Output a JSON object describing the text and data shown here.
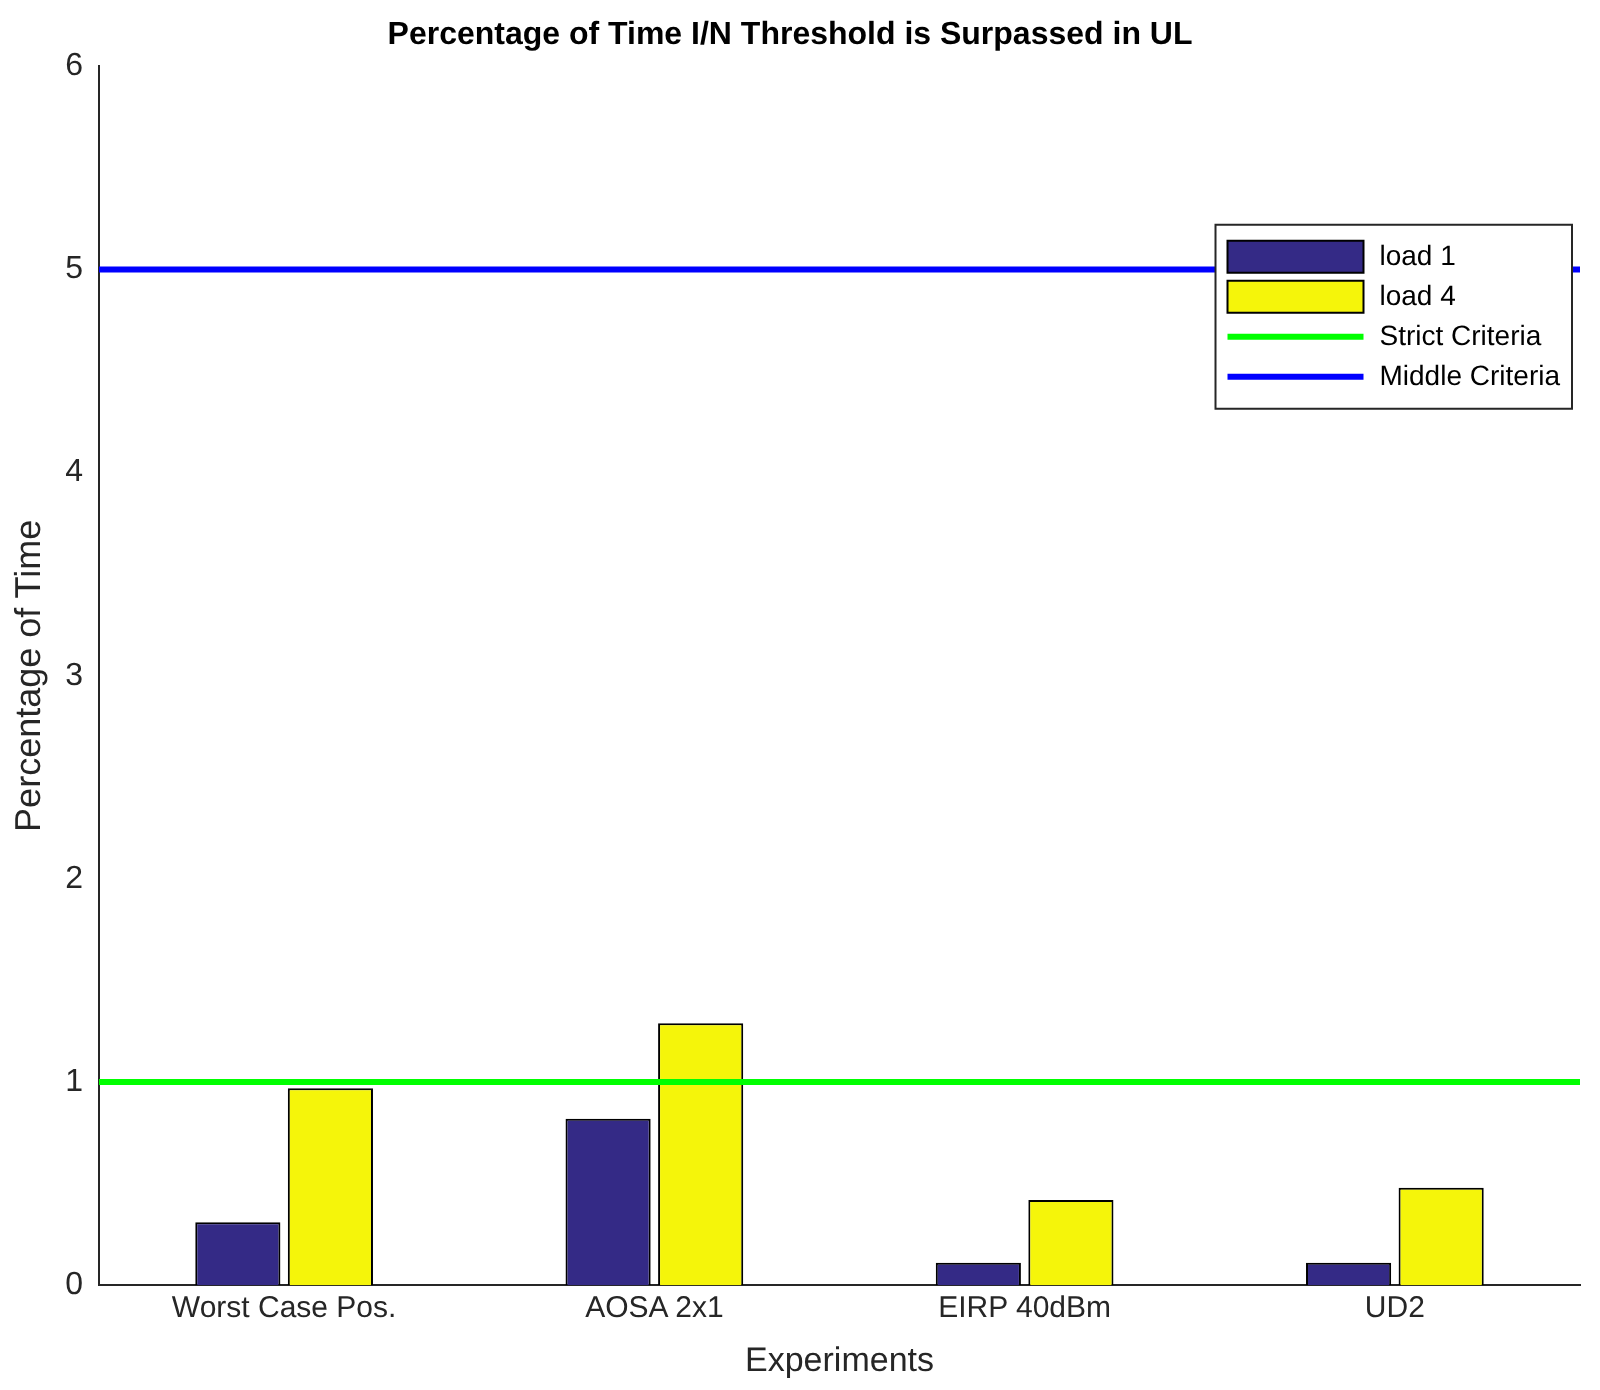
{
  "chart_data": {
    "type": "bar",
    "title": "Percentage of Time I/N Threshold is Surpassed in UL",
    "xlabel": "Experiments",
    "ylabel": "Percentage of Time",
    "categories": [
      "Worst Case Pos.",
      "AOSA 2x1",
      "EIRP 40dBm",
      "UD2"
    ],
    "series": [
      {
        "name": "load 1",
        "color": "#342a86",
        "values": [
          0.31,
          0.82,
          0.11,
          0.11
        ]
      },
      {
        "name": "load 4",
        "color": "#f5f50a",
        "values": [
          0.97,
          1.29,
          0.42,
          0.48
        ]
      }
    ],
    "ref_lines": [
      {
        "axis": "y",
        "value": 1,
        "label": "Strict Criteria",
        "color": "#00ff00"
      },
      {
        "axis": "y",
        "value": 5,
        "label": "Middle Criteria",
        "color": "#0000ff"
      }
    ],
    "ylim": [
      0,
      6
    ],
    "yticks": [
      0,
      1,
      2,
      3,
      4,
      5,
      6
    ],
    "grid": false,
    "legend": "right"
  }
}
